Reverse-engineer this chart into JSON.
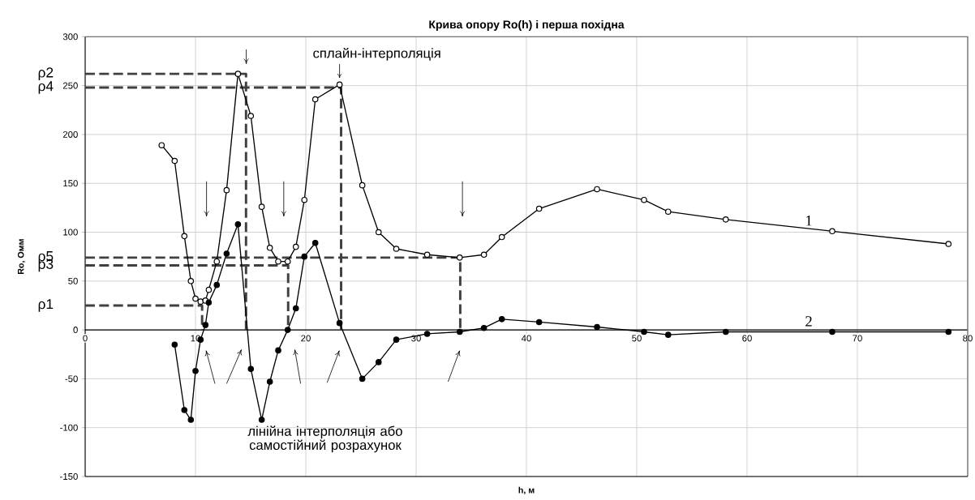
{
  "chart_data": {
    "type": "line",
    "title": "Крива опору Ro(h) і перша похідна",
    "xlabel": "h, м",
    "ylabel": "Ro, Омм",
    "xlim": [
      0,
      80
    ],
    "ylim": [
      -150,
      300
    ],
    "xticks": [
      0,
      10,
      20,
      30,
      40,
      50,
      60,
      70,
      80
    ],
    "yticks": [
      -150,
      -100,
      -50,
      0,
      50,
      100,
      150,
      200,
      250,
      300
    ],
    "grid": true,
    "annotations": [
      {
        "text": "сплайн-інтерполяція",
        "x": 23.06,
        "y": 251
      },
      "лінійна інтерполяція або самостійний розрахунок"
    ],
    "series": [
      {
        "name": "ρ2",
        "color": "#404040",
        "line_style": "dashed",
        "marker": "none",
        "x": [
          0,
          14.58,
          14.58
        ],
        "values": [
          262,
          262,
          0
        ]
      },
      {
        "name": "ρ4",
        "color": "#404040",
        "line_style": "dashed",
        "marker": "none",
        "x": [
          0,
          23.2,
          23.2
        ],
        "values": [
          248,
          248,
          0
        ]
      },
      {
        "name": "ρ5",
        "color": "#404040",
        "line_style": "dashed",
        "marker": "none",
        "x": [
          0,
          34.0,
          34.0
        ],
        "values": [
          74,
          74,
          0
        ]
      },
      {
        "name": "ρ3",
        "color": "#404040",
        "line_style": "dashed",
        "marker": "none",
        "x": [
          0,
          18.4,
          18.4
        ],
        "values": [
          66,
          66,
          0
        ]
      },
      {
        "name": "ρ1",
        "color": "#404040",
        "line_style": "dashed",
        "marker": "none",
        "x": [
          0,
          10.6,
          10.6
        ],
        "values": [
          25,
          25,
          0
        ]
      },
      {
        "name": "1",
        "color": "#000000",
        "marker": "circle",
        "x": [
          6.93,
          8.11,
          8.99,
          9.58,
          10.0,
          10.46,
          10.9,
          11.2,
          11.93,
          12.82,
          13.85,
          15.02,
          16.0,
          16.74,
          17.5,
          18.36,
          19.1,
          19.87,
          20.86,
          23.06,
          25.12,
          26.6,
          28.2,
          31.0,
          33.95,
          36.15,
          37.77,
          41.15,
          46.4,
          50.66,
          52.85,
          58.07,
          67.72,
          78.26
        ],
        "values": [
          189,
          173,
          96,
          50,
          32,
          29,
          30,
          41,
          70,
          143,
          262,
          219,
          126,
          84,
          70,
          70,
          85,
          133,
          236,
          251,
          148,
          100,
          83,
          77,
          74,
          77,
          95,
          124,
          144,
          133,
          121,
          113,
          101,
          88
        ]
      },
      {
        "name": "2",
        "color": "#000000",
        "marker": "circle",
        "x": [
          8.11,
          8.99,
          9.58,
          10.0,
          10.46,
          10.9,
          11.2,
          11.93,
          12.82,
          13.85,
          15.02,
          16.0,
          16.74,
          17.5,
          18.36,
          19.1,
          19.87,
          20.86,
          23.06,
          25.12,
          26.6,
          28.2,
          31.0,
          33.95,
          36.15,
          37.77,
          41.15,
          46.4,
          50.66,
          52.85,
          58.07,
          67.72,
          78.26
        ],
        "values": [
          -15,
          -82,
          -92,
          -42,
          -10,
          5,
          28,
          46,
          78,
          108,
          -40,
          -92,
          -53,
          -21,
          0,
          22,
          75,
          89,
          7,
          -50,
          -33,
          -10,
          -4,
          -2,
          2,
          11,
          8,
          3,
          -2,
          -5,
          -2,
          -2,
          -2
        ]
      }
    ]
  }
}
